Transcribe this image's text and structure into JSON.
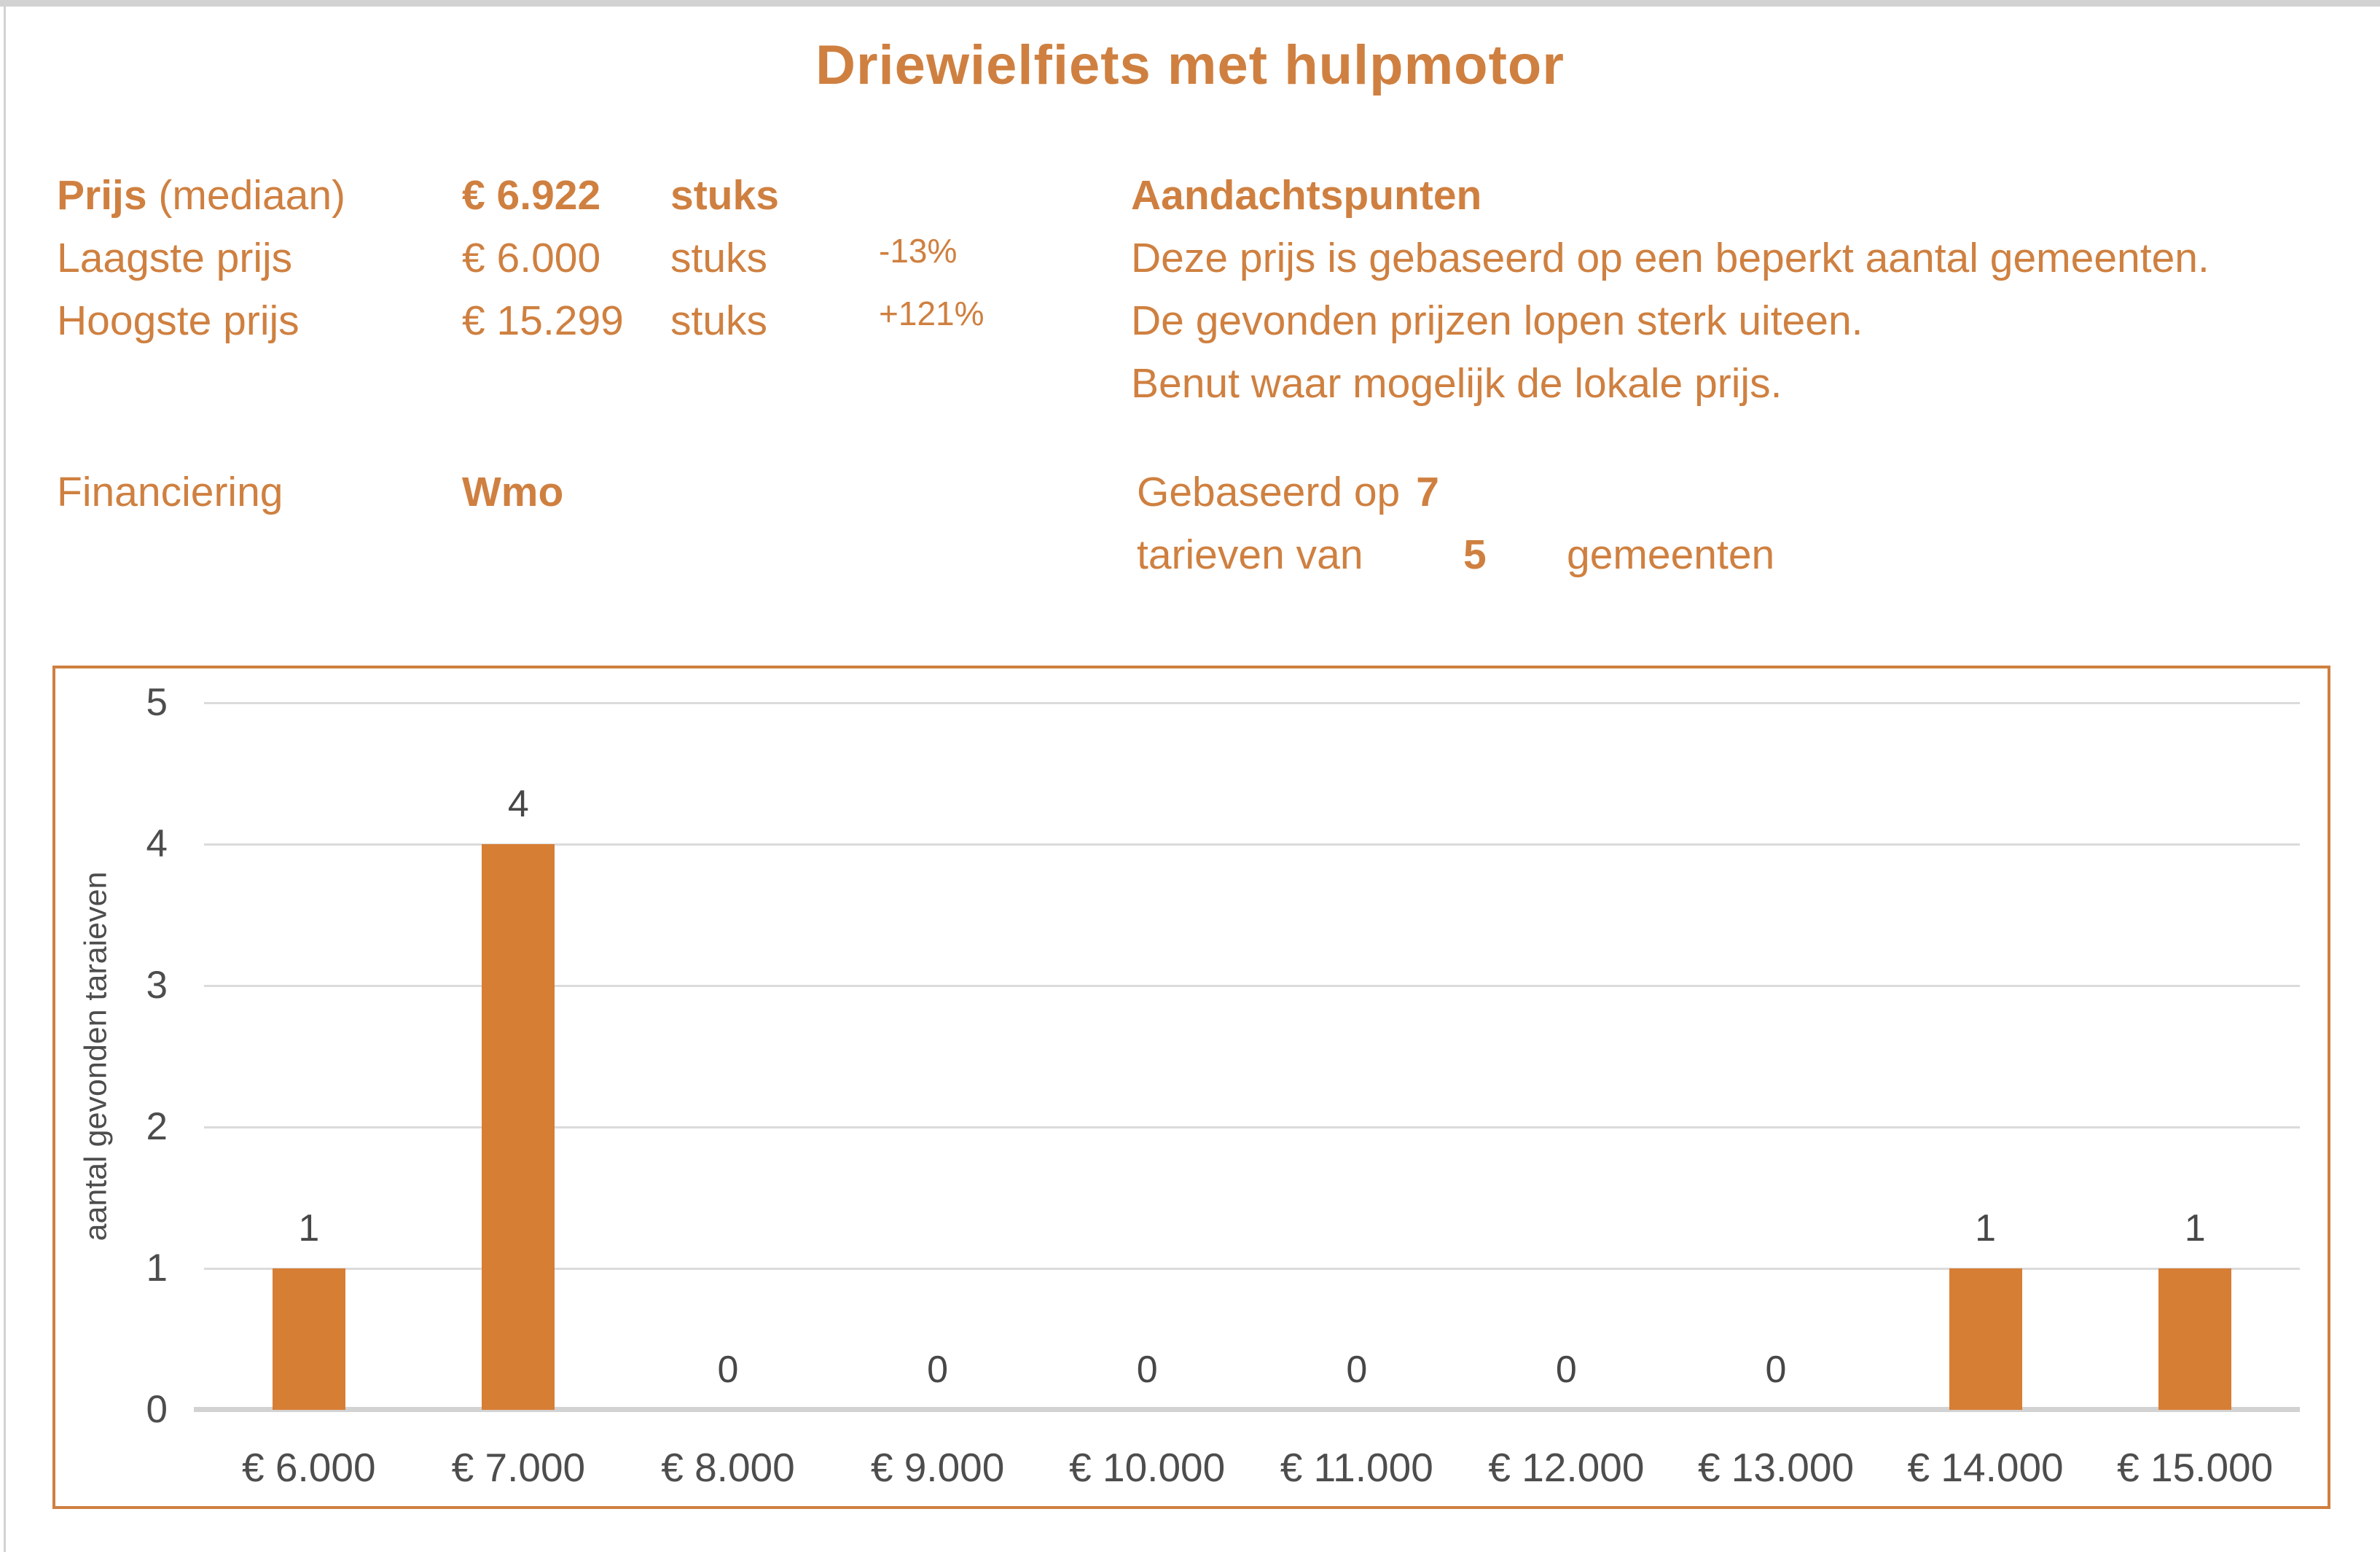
{
  "colors": {
    "accent": "#cf8040",
    "bar": "#d77e35",
    "grid": "#dbdbdb",
    "baseline": "#d2d2d2",
    "axis_text": "#4d4d4d",
    "frame_gray": "#d2d2d2"
  },
  "title": "Driewielfiets met hulpmotor",
  "metrics": {
    "row1": {
      "label_bold": "Prijs",
      "label_rest": " (mediaan)",
      "value": "€ 6.922",
      "unit": "stuks"
    },
    "row2": {
      "label": "Laagste prijs",
      "value": "€ 6.000",
      "unit": "stuks",
      "delta": "-13%"
    },
    "row3": {
      "label": "Hoogste prijs",
      "value": "€ 15.299",
      "unit": "stuks",
      "delta": "+121%"
    },
    "financing_label": "Financiering",
    "financing_value": "Wmo"
  },
  "notes": {
    "heading": "Aandachtspunten",
    "line1": "Deze prijs is gebaseerd op een beperkt aantal gemeenten.",
    "line2": "De gevonden prijzen lopen sterk uiteen.",
    "line3": "Benut waar mogelijk de lokale prijs."
  },
  "basis": {
    "line1_text": "Gebaseerd op",
    "line1_value": "7",
    "line2_text": "tarieven van",
    "line2_value": "5",
    "line2_suffix": "gemeenten"
  },
  "chart_data": {
    "type": "bar",
    "categories": [
      "€ 6.000",
      "€ 7.000",
      "€ 8.000",
      "€ 9.000",
      "€ 10.000",
      "€ 11.000",
      "€ 12.000",
      "€ 13.000",
      "€ 14.000",
      "€ 15.000"
    ],
    "values": [
      1,
      4,
      0,
      0,
      0,
      0,
      0,
      0,
      1,
      1
    ],
    "title": "",
    "xlabel": "",
    "ylabel": "aantal gevonden taraieven",
    "ylim": [
      0,
      5
    ],
    "yticks": [
      0,
      1,
      2,
      3,
      4,
      5
    ],
    "grid": true,
    "legend_position": "none",
    "bar_color": "#d77e35"
  }
}
